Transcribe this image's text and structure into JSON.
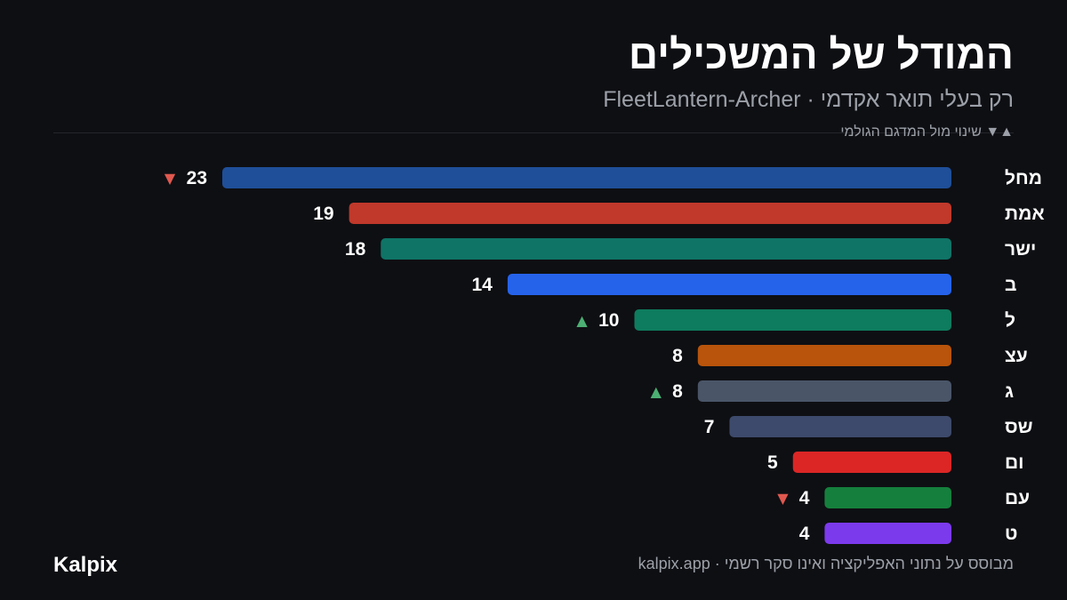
{
  "header": {
    "title": "המודל של המשכילים",
    "subtitle": "רק בעלי תואר אקדמי · FleetLantern-Archer",
    "legend": "▲▼ שינוי מול המדגם הגולמי"
  },
  "footer": {
    "brand": "Kalpix",
    "note": "מבוסס על נתוני האפליקציה ואינו סקר רשמי · kalpix.app"
  },
  "colors": {
    "background": "#0e0f13",
    "up": "#4caf73",
    "down": "#e0584f"
  },
  "chart_data": {
    "type": "bar",
    "orientation": "horizontal",
    "xlim": [
      0,
      23
    ],
    "categories": [
      "מחל",
      "אמת",
      "ישר",
      "ב",
      "ל",
      "עצ",
      "ג",
      "שס",
      "ום",
      "עם",
      "ט"
    ],
    "values": [
      23,
      19,
      18,
      14,
      10,
      8,
      8,
      7,
      5,
      4,
      4
    ],
    "colors": [
      "#1f4f99",
      "#c0392b",
      "#0f7466",
      "#2563eb",
      "#0e7c5e",
      "#b8540b",
      "#4a5568",
      "#3d4a6b",
      "#dc2626",
      "#15803d",
      "#7c3aed"
    ],
    "change": [
      "down",
      "",
      "",
      "",
      "up",
      "",
      "up",
      "",
      "",
      "down",
      ""
    ]
  }
}
